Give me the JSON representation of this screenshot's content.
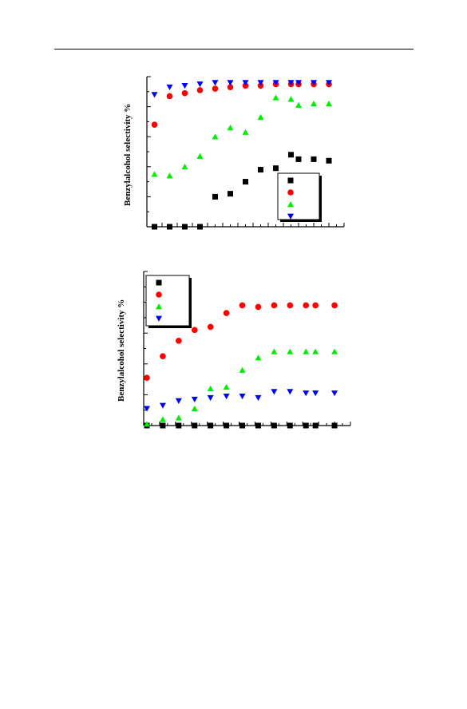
{
  "colors": {
    "black_squares": "#000000",
    "red_circles": "#ff0000",
    "green_triangles": "#00ee00",
    "blue_triangles": "#0000ff"
  },
  "chart_data": [
    {
      "type": "scatter",
      "title": "",
      "ylabel": "Benzylalcohol selectivity %",
      "xlabel": "",
      "legend_position": "bottom-right",
      "grid": false,
      "xlim": [
        0,
        13
      ],
      "ylim": [
        0,
        100
      ],
      "series": [
        {
          "marker": "square",
          "color": "#000000",
          "x": [
            0.5,
            1.5,
            2.5,
            3.5,
            4.5,
            5.5,
            6.5,
            7.5,
            8.5,
            9.5,
            10.0,
            11.0,
            12.0
          ],
          "y": [
            0,
            0,
            0,
            0,
            20,
            22,
            30,
            38,
            39,
            48,
            45,
            45,
            44
          ]
        },
        {
          "marker": "circle",
          "color": "#ff0000",
          "x": [
            0.5,
            1.5,
            2.5,
            3.5,
            4.5,
            5.5,
            6.5,
            7.5,
            8.5,
            9.5,
            10.0,
            11.0,
            12.0
          ],
          "y": [
            68,
            87,
            89,
            91,
            92,
            93,
            94,
            94,
            95,
            95,
            95,
            95,
            95
          ]
        },
        {
          "marker": "triangle-up",
          "color": "#00ee00",
          "x": [
            0.5,
            1.5,
            2.5,
            3.5,
            4.5,
            5.5,
            6.5,
            7.5,
            8.5,
            9.5,
            10.0,
            11.0,
            12.0
          ],
          "y": [
            35,
            34,
            40,
            47,
            60,
            66,
            63,
            73,
            86,
            85,
            81,
            82,
            82
          ]
        },
        {
          "marker": "triangle-down",
          "color": "#0000ff",
          "x": [
            0.5,
            1.5,
            2.5,
            3.5,
            4.5,
            5.5,
            6.5,
            7.5,
            8.5,
            9.5,
            10.0,
            11.0,
            12.0
          ],
          "y": [
            88,
            93,
            94,
            95,
            96,
            96,
            96,
            96,
            96,
            96,
            96,
            96,
            96
          ]
        }
      ]
    },
    {
      "type": "scatter",
      "title": "",
      "ylabel": "Benzylalcohol selectivity %",
      "xlabel": "",
      "legend_position": "top-left",
      "grid": false,
      "xlim": [
        0,
        13
      ],
      "ylim": [
        0,
        100
      ],
      "series": [
        {
          "marker": "square",
          "color": "#000000",
          "x": [
            0.2,
            1.2,
            2.2,
            3.2,
            4.2,
            5.2,
            6.2,
            7.2,
            8.2,
            9.2,
            10.2,
            10.8,
            12.0
          ],
          "y": [
            0,
            0,
            0,
            0,
            0,
            0,
            0,
            0,
            0,
            0,
            0,
            0,
            0
          ]
        },
        {
          "marker": "circle",
          "color": "#ff0000",
          "x": [
            0.2,
            1.2,
            2.2,
            3.2,
            4.2,
            5.2,
            6.2,
            7.2,
            8.2,
            9.2,
            10.2,
            10.8,
            12.0
          ],
          "y": [
            31,
            45,
            55,
            62,
            64,
            73,
            78,
            77,
            78,
            78,
            78,
            78,
            78
          ]
        },
        {
          "marker": "triangle-up",
          "color": "#00ee00",
          "x": [
            0.2,
            1.2,
            2.2,
            3.2,
            4.2,
            5.2,
            6.2,
            7.2,
            8.2,
            9.2,
            10.2,
            10.8,
            12.0
          ],
          "y": [
            1,
            4,
            5,
            11,
            24,
            25,
            36,
            44,
            48,
            48,
            48,
            48,
            48
          ]
        },
        {
          "marker": "triangle-down",
          "color": "#0000ff",
          "x": [
            0.2,
            1.2,
            2.2,
            3.2,
            4.2,
            5.2,
            6.2,
            7.2,
            8.2,
            9.2,
            10.2,
            10.8,
            12.0
          ],
          "y": [
            11,
            13,
            16,
            17,
            18,
            19,
            19,
            18,
            22,
            22,
            21,
            21,
            21
          ]
        }
      ]
    }
  ]
}
